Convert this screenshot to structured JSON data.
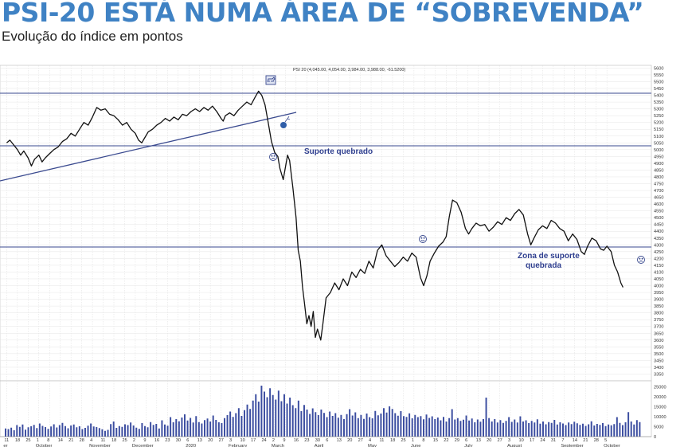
{
  "headline": "PSI-20 ESTÁ NUMA ÁREA DE “SOBREVENDA”",
  "subtitle": "Evolução do índice em pontos",
  "chart_data": {
    "type": "line",
    "title": "PSI-20 ESTÁ NUMA ÁREA DE “SOBREVENDA”",
    "subtitle": "Evolução do índice em pontos",
    "ohlc_label": "PSI 20 (4,045.00, 4,054.00, 3,984.00, 3,988.00, -61.5200)",
    "y_ticks": [
      5600,
      5550,
      5500,
      5450,
      5400,
      5350,
      5300,
      5250,
      5200,
      5150,
      5100,
      5050,
      5000,
      4950,
      4900,
      4850,
      4800,
      4750,
      4700,
      4650,
      4600,
      4550,
      4500,
      4450,
      4400,
      4350,
      4300,
      4250,
      4200,
      4150,
      4100,
      4050,
      4000,
      3950,
      3900,
      3850,
      3800,
      3750,
      3700,
      3650,
      3600,
      3550,
      3500,
      3450,
      3400,
      3350
    ],
    "ylim": [
      3300,
      5620
    ],
    "volume_ticks": [
      "25000",
      "20000",
      "15000",
      "10000",
      "5000",
      "0"
    ],
    "volume_ylim": [
      0,
      28000
    ],
    "date_ticks": [
      "11",
      "18",
      "25",
      "1",
      "8",
      "14",
      "21",
      "28",
      "4",
      "11",
      "18",
      "25",
      "2",
      "9",
      "16",
      "23",
      "30",
      "6",
      "13",
      "20",
      "27",
      "3",
      "10",
      "17",
      "24",
      "2",
      "9",
      "16",
      "23",
      "30",
      "6",
      "13",
      "20",
      "27",
      "4",
      "11",
      "18",
      "25",
      "1",
      "8",
      "15",
      "22",
      "29",
      "6",
      "13",
      "20",
      "27",
      "3",
      "10",
      "17",
      "24",
      "31",
      "7",
      "14",
      "21",
      "28",
      "5"
    ],
    "month_labels": [
      {
        "label": "er",
        "tick": 0
      },
      {
        "label": "October",
        "tick": 3
      },
      {
        "label": "November",
        "tick": 8
      },
      {
        "label": "December",
        "tick": 12
      },
      {
        "label": "2020",
        "tick": 17
      },
      {
        "label": "February",
        "tick": 21
      },
      {
        "label": "March",
        "tick": 25
      },
      {
        "label": "April",
        "tick": 29
      },
      {
        "label": "May",
        "tick": 34
      },
      {
        "label": "June",
        "tick": 38
      },
      {
        "label": "July",
        "tick": 43
      },
      {
        "label": "August",
        "tick": 47
      },
      {
        "label": "September",
        "tick": 52
      },
      {
        "label": "October",
        "tick": 56
      }
    ],
    "series": [
      {
        "values": [
          [
            0,
            5050
          ],
          [
            0.3,
            5070
          ],
          [
            0.6,
            5040
          ],
          [
            1,
            5000
          ],
          [
            1.3,
            4960
          ],
          [
            1.6,
            4990
          ],
          [
            2,
            4940
          ],
          [
            2.3,
            4880
          ],
          [
            2.6,
            4930
          ],
          [
            3,
            4960
          ],
          [
            3.3,
            4910
          ],
          [
            3.6,
            4940
          ],
          [
            4,
            4970
          ],
          [
            4.4,
            5000
          ],
          [
            4.8,
            5020
          ],
          [
            5.2,
            5060
          ],
          [
            5.6,
            5080
          ],
          [
            6,
            5120
          ],
          [
            6.4,
            5100
          ],
          [
            6.8,
            5150
          ],
          [
            7.2,
            5200
          ],
          [
            7.6,
            5180
          ],
          [
            8,
            5240
          ],
          [
            8.4,
            5310
          ],
          [
            8.8,
            5290
          ],
          [
            9.2,
            5300
          ],
          [
            9.6,
            5260
          ],
          [
            10,
            5250
          ],
          [
            10.4,
            5220
          ],
          [
            10.8,
            5180
          ],
          [
            11.2,
            5200
          ],
          [
            11.6,
            5150
          ],
          [
            12,
            5120
          ],
          [
            12.3,
            5070
          ],
          [
            12.6,
            5050
          ],
          [
            12.9,
            5090
          ],
          [
            13.2,
            5130
          ],
          [
            13.6,
            5150
          ],
          [
            14,
            5180
          ],
          [
            14.4,
            5200
          ],
          [
            14.8,
            5230
          ],
          [
            15.2,
            5210
          ],
          [
            15.6,
            5240
          ],
          [
            16,
            5220
          ],
          [
            16.4,
            5260
          ],
          [
            16.8,
            5250
          ],
          [
            17.2,
            5280
          ],
          [
            17.6,
            5300
          ],
          [
            18,
            5280
          ],
          [
            18.4,
            5310
          ],
          [
            18.8,
            5290
          ],
          [
            19.2,
            5320
          ],
          [
            19.6,
            5280
          ],
          [
            20,
            5230
          ],
          [
            20.2,
            5210
          ],
          [
            20.4,
            5250
          ],
          [
            20.8,
            5270
          ],
          [
            21.2,
            5250
          ],
          [
            21.6,
            5290
          ],
          [
            22,
            5320
          ],
          [
            22.4,
            5350
          ],
          [
            22.8,
            5330
          ],
          [
            23.2,
            5390
          ],
          [
            23.5,
            5430
          ],
          [
            23.8,
            5400
          ],
          [
            24.1,
            5330
          ],
          [
            24.4,
            5200
          ],
          [
            24.7,
            5060
          ],
          [
            25,
            4980
          ],
          [
            25.3,
            4950
          ],
          [
            25.5,
            4860
          ],
          [
            25.8,
            4780
          ],
          [
            26.2,
            4960
          ],
          [
            26.4,
            4920
          ],
          [
            26.7,
            4720
          ],
          [
            27,
            4500
          ],
          [
            27.2,
            4260
          ],
          [
            27.4,
            4180
          ],
          [
            27.6,
            3990
          ],
          [
            27.8,
            3860
          ],
          [
            28.0,
            3720
          ],
          [
            28.2,
            3780
          ],
          [
            28.4,
            3700
          ],
          [
            28.6,
            3810
          ],
          [
            28.8,
            3620
          ],
          [
            29.0,
            3680
          ],
          [
            29.3,
            3600
          ],
          [
            29.5,
            3720
          ],
          [
            29.8,
            3910
          ],
          [
            30.2,
            3950
          ],
          [
            30.6,
            4020
          ],
          [
            31.0,
            3970
          ],
          [
            31.4,
            4050
          ],
          [
            31.8,
            4000
          ],
          [
            32.2,
            4100
          ],
          [
            32.6,
            4060
          ],
          [
            33.0,
            4120
          ],
          [
            33.4,
            4090
          ],
          [
            33.8,
            4180
          ],
          [
            34.2,
            4130
          ],
          [
            34.6,
            4260
          ],
          [
            35.0,
            4300
          ],
          [
            35.4,
            4220
          ],
          [
            35.8,
            4180
          ],
          [
            36.2,
            4140
          ],
          [
            36.6,
            4170
          ],
          [
            37,
            4210
          ],
          [
            37.4,
            4180
          ],
          [
            37.8,
            4240
          ],
          [
            38.2,
            4210
          ],
          [
            38.6,
            4060
          ],
          [
            38.9,
            4000
          ],
          [
            39.2,
            4070
          ],
          [
            39.5,
            4180
          ],
          [
            39.9,
            4240
          ],
          [
            40.3,
            4290
          ],
          [
            40.7,
            4320
          ],
          [
            41,
            4360
          ],
          [
            41.3,
            4510
          ],
          [
            41.6,
            4630
          ],
          [
            42,
            4610
          ],
          [
            42.4,
            4540
          ],
          [
            42.8,
            4420
          ],
          [
            43.1,
            4380
          ],
          [
            43.4,
            4420
          ],
          [
            43.8,
            4460
          ],
          [
            44.2,
            4440
          ],
          [
            44.6,
            4450
          ],
          [
            45,
            4400
          ],
          [
            45.4,
            4430
          ],
          [
            45.8,
            4470
          ],
          [
            46.2,
            4450
          ],
          [
            46.6,
            4500
          ],
          [
            47,
            4480
          ],
          [
            47.4,
            4530
          ],
          [
            47.8,
            4560
          ],
          [
            48.2,
            4520
          ],
          [
            48.6,
            4380
          ],
          [
            48.9,
            4300
          ],
          [
            49.2,
            4350
          ],
          [
            49.6,
            4410
          ],
          [
            50,
            4440
          ],
          [
            50.4,
            4420
          ],
          [
            50.8,
            4480
          ],
          [
            51.2,
            4460
          ],
          [
            51.6,
            4420
          ],
          [
            52,
            4400
          ],
          [
            52.4,
            4330
          ],
          [
            52.8,
            4380
          ],
          [
            53.2,
            4340
          ],
          [
            53.6,
            4250
          ],
          [
            53.9,
            4230
          ],
          [
            54.2,
            4290
          ],
          [
            54.6,
            4350
          ],
          [
            55,
            4330
          ],
          [
            55.4,
            4270
          ],
          [
            55.7,
            4260
          ],
          [
            56,
            4290
          ],
          [
            56.4,
            4250
          ],
          [
            56.7,
            4150
          ],
          [
            57.0,
            4100
          ],
          [
            57.3,
            4020
          ],
          [
            57.5,
            3988
          ]
        ]
      }
    ],
    "volume": [
      4100,
      3800,
      4500,
      3200,
      5800,
      4900,
      6100,
      3500,
      4700,
      5200,
      5900,
      4300,
      6600,
      5400,
      4800,
      3900,
      5100,
      6200,
      4600,
      5800,
      6900,
      5300,
      4200,
      5600,
      6100,
      4700,
      5200,
      3800,
      4400,
      5500,
      6600,
      5100,
      4800,
      4300,
      3700,
      2900,
      3400,
      6300,
      7600,
      4400,
      5300,
      4900,
      6200,
      5800,
      7100,
      5600,
      4500,
      3900,
      6800,
      5300,
      4700,
      7300,
      5900,
      6400,
      4100,
      8200,
      6100,
      5500,
      9800,
      7200,
      8800,
      7700,
      9600,
      11200,
      8100,
      9400,
      7100,
      10300,
      7300,
      6600,
      8300,
      9100,
      7600,
      10600,
      8400,
      7200,
      6800,
      9300,
      10800,
      12600,
      9900,
      11800,
      14300,
      10400,
      13300,
      16100,
      13900,
      18100,
      21300,
      17600,
      25600,
      22600,
      19800,
      24300,
      20900,
      18600,
      23100,
      17800,
      21300,
      16600,
      19600,
      15800,
      14300,
      18100,
      12800,
      15900,
      13600,
      11400,
      14200,
      12300,
      10800,
      13600,
      11900,
      9800,
      12600,
      10400,
      11800,
      9500,
      10900,
      8800,
      11300,
      13800,
      10600,
      12200,
      9300,
      10900,
      8900,
      11600,
      9800,
      9200,
      12900,
      10700,
      11600,
      14300,
      12100,
      15200,
      13900,
      11800,
      10500,
      12800,
      10300,
      9900,
      11700,
      9200,
      10900,
      9800,
      10300,
      8700,
      11100,
      9400,
      10200,
      8800,
      9600,
      8200,
      9900,
      7600,
      9300,
      13800,
      8600,
      9300,
      7900,
      8500,
      10600,
      8100,
      9100,
      7200,
      8600,
      7500,
      8800,
      19600,
      9300,
      7600,
      8800,
      7100,
      8300,
      6900,
      7900,
      9800,
      7400,
      8600,
      7100,
      10200,
      7600,
      8200,
      6800,
      7900,
      7100,
      8700,
      6500,
      7600,
      6200,
      7300,
      6900,
      8400,
      6100,
      7200,
      6600,
      5800,
      7100,
      6300,
      7500,
      6700,
      5900,
      6500,
      5400,
      6200,
      7700,
      5600,
      6400,
      5900,
      6800,
      5300,
      6100,
      5700,
      6300,
      9800,
      6900,
      5800,
      7200,
      12300,
      7600,
      6100,
      8300,
      7300
    ]
  },
  "annotations": {
    "support_broken": "Suporte quebrado",
    "support_zone_line1": "Zona de suporte",
    "support_zone_line2": "quebrada"
  },
  "icons": [
    "bull-icon",
    "bomb-icon",
    "sad-face-icon",
    "happy-face-icon"
  ],
  "colors": {
    "headline": "#3f82c4",
    "line": "#111111",
    "reference": "#3a4a8f",
    "grid": "#cfcfcf",
    "volume": "#3b4da0"
  }
}
